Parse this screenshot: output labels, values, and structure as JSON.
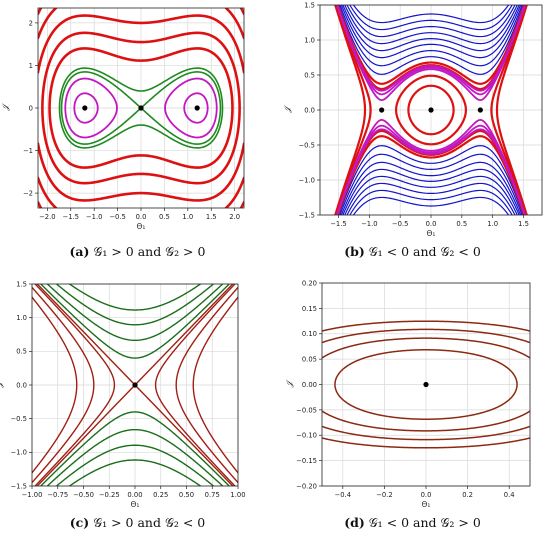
{
  "panels": [
    {
      "id": "a",
      "caption_label": "(a)",
      "caption_text": "𝒢₁ > 0 and 𝒢₂ > 0",
      "chart_data": {
        "type": "line",
        "xlabel": "Θ₁",
        "ylabel": "𝒥",
        "xlim": [
          -2.2,
          2.2
        ],
        "ylim": [
          -2.35,
          2.35
        ],
        "xticks": [
          -2.0,
          -1.5,
          -1.0,
          -0.5,
          0.0,
          0.5,
          1.0,
          1.5,
          2.0
        ],
        "yticks": [
          -2,
          -1,
          0,
          1,
          2
        ],
        "xtick_labels": [
          "−2.0",
          "−1.5",
          "−1.0",
          "−0.5",
          "0.0",
          "0.5",
          "1.0",
          "1.5",
          "2.0"
        ],
        "ytick_labels": [
          "−2",
          "−1",
          "0",
          "1",
          "2"
        ],
        "grid": true,
        "family": "doublewell",
        "params": {
          "a": 1.2
        },
        "series": [
          {
            "color": "#dd1111",
            "width": 2.6,
            "levels": [
              0.62,
              1.2,
              2.0,
              3.0,
              4.1,
              5.1
            ]
          },
          {
            "color": "#1f8a1f",
            "width": 1.6,
            "levels": [
              0.0,
              0.08
            ]
          },
          {
            "color": "#c217c2",
            "width": 1.8,
            "levels": [
              -0.12,
              -0.3,
              -0.5
            ]
          }
        ],
        "points": [
          {
            "x": -1.2,
            "y": 0,
            "label": ""
          },
          {
            "x": 1.2,
            "y": 0,
            "label": ""
          },
          {
            "x": 0,
            "y": 0,
            "label": ""
          }
        ]
      }
    },
    {
      "id": "b",
      "caption_label": "(b)",
      "caption_text": "𝒢₁ < 0 and 𝒢₂ < 0",
      "chart_data": {
        "type": "line",
        "xlabel": "Θ₁",
        "ylabel": "𝒥",
        "xlim": [
          -1.8,
          1.8
        ],
        "ylim": [
          -1.5,
          1.5
        ],
        "xticks": [
          -1.5,
          -1.0,
          -0.5,
          0.0,
          0.5,
          1.0,
          1.5
        ],
        "yticks": [
          -1.5,
          -1.0,
          -0.5,
          0.0,
          0.5,
          1.0,
          1.5
        ],
        "xtick_labels": [
          "−1.5",
          "−1.0",
          "−0.5",
          "0.0",
          "0.5",
          "1.0",
          "1.5"
        ],
        "ytick_labels": [
          "−1.5",
          "−1.0",
          "−0.5",
          "0.0",
          "0.5",
          "1.0",
          "1.5"
        ],
        "grid": true,
        "family": "invwell",
        "params": {
          "a": 0.8
        },
        "series": [
          {
            "color": "#1414cc",
            "width": 1.2,
            "levels": [
              0.13,
              0.2,
              0.28,
              0.36,
              0.45,
              0.55,
              0.66,
              0.78
            ]
          },
          {
            "color": "#dd1111",
            "width": 2.2,
            "levels": [
              -0.04,
              -0.1,
              0.045,
              0.07
            ]
          },
          {
            "color": "#c217c2",
            "width": 1.8,
            "levels": [
              0.01,
              0.025,
              0.038
            ]
          }
        ],
        "points": [
          {
            "x": -0.8,
            "y": 0,
            "label": ""
          },
          {
            "x": 0.8,
            "y": 0,
            "label": ""
          },
          {
            "x": 0,
            "y": 0,
            "label": ""
          }
        ]
      }
    },
    {
      "id": "c",
      "caption_label": "(c)",
      "caption_text": "𝒢₁ > 0 and 𝒢₂ < 0",
      "chart_data": {
        "type": "line",
        "xlabel": "Θ₁",
        "ylabel": "𝒥",
        "xlim": [
          -1.0,
          1.0
        ],
        "ylim": [
          -1.5,
          1.5
        ],
        "xticks": [
          -1.0,
          -0.75,
          -0.5,
          -0.25,
          0.0,
          0.25,
          0.5,
          0.75,
          1.0
        ],
        "yticks": [
          -1.5,
          -1.0,
          -0.5,
          0.0,
          0.5,
          1.0,
          1.5
        ],
        "xtick_labels": [
          "−1.00",
          "−0.75",
          "−0.50",
          "−0.25",
          "0.00",
          "0.25",
          "0.50",
          "0.75",
          "1.00"
        ],
        "ytick_labels": [
          "−1.5",
          "−1.0",
          "−0.5",
          "0.0",
          "0.5",
          "1.0",
          "1.5"
        ],
        "grid": true,
        "family": "saddle",
        "params": {
          "b": 1.25
        },
        "series": [
          {
            "color": "#1a6e1a",
            "width": 1.4,
            "levels": [
              0.08,
              0.22,
              0.4,
              0.62
            ]
          },
          {
            "color": "#a01f14",
            "width": 1.4,
            "levels": [
              0.0,
              -0.05,
              -0.2,
              -0.4
            ]
          }
        ],
        "points": [
          {
            "x": 0,
            "y": 0,
            "label": ""
          }
        ]
      }
    },
    {
      "id": "d",
      "caption_label": "(d)",
      "caption_text": "𝒢₁ < 0 and 𝒢₂ > 0",
      "chart_data": {
        "type": "line",
        "xlabel": "Θ₁",
        "ylabel": "𝒥",
        "xlim": [
          -0.5,
          0.5
        ],
        "ylim": [
          -0.2,
          0.2
        ],
        "xticks": [
          -0.4,
          -0.2,
          0.0,
          0.2,
          0.4
        ],
        "yticks": [
          -0.2,
          -0.15,
          -0.1,
          -0.05,
          0.0,
          0.05,
          0.1,
          0.15,
          0.2
        ],
        "xtick_labels": [
          "−0.4",
          "−0.2",
          "0.0",
          "0.2",
          "0.4"
        ],
        "ytick_labels": [
          "−0.20",
          "−0.15",
          "−0.10",
          "−0.05",
          "0.00",
          "0.05",
          "0.10",
          "0.15",
          "0.20"
        ],
        "grid": true,
        "family": "center",
        "params": {
          "k": 6.4
        },
        "series": [
          {
            "color": "#8a2a10",
            "width": 1.5,
            "levels": [
              0.105,
              0.2,
              0.3,
              0.42
            ]
          }
        ],
        "points": [
          {
            "x": 0,
            "y": 0,
            "label": ""
          }
        ]
      }
    }
  ]
}
